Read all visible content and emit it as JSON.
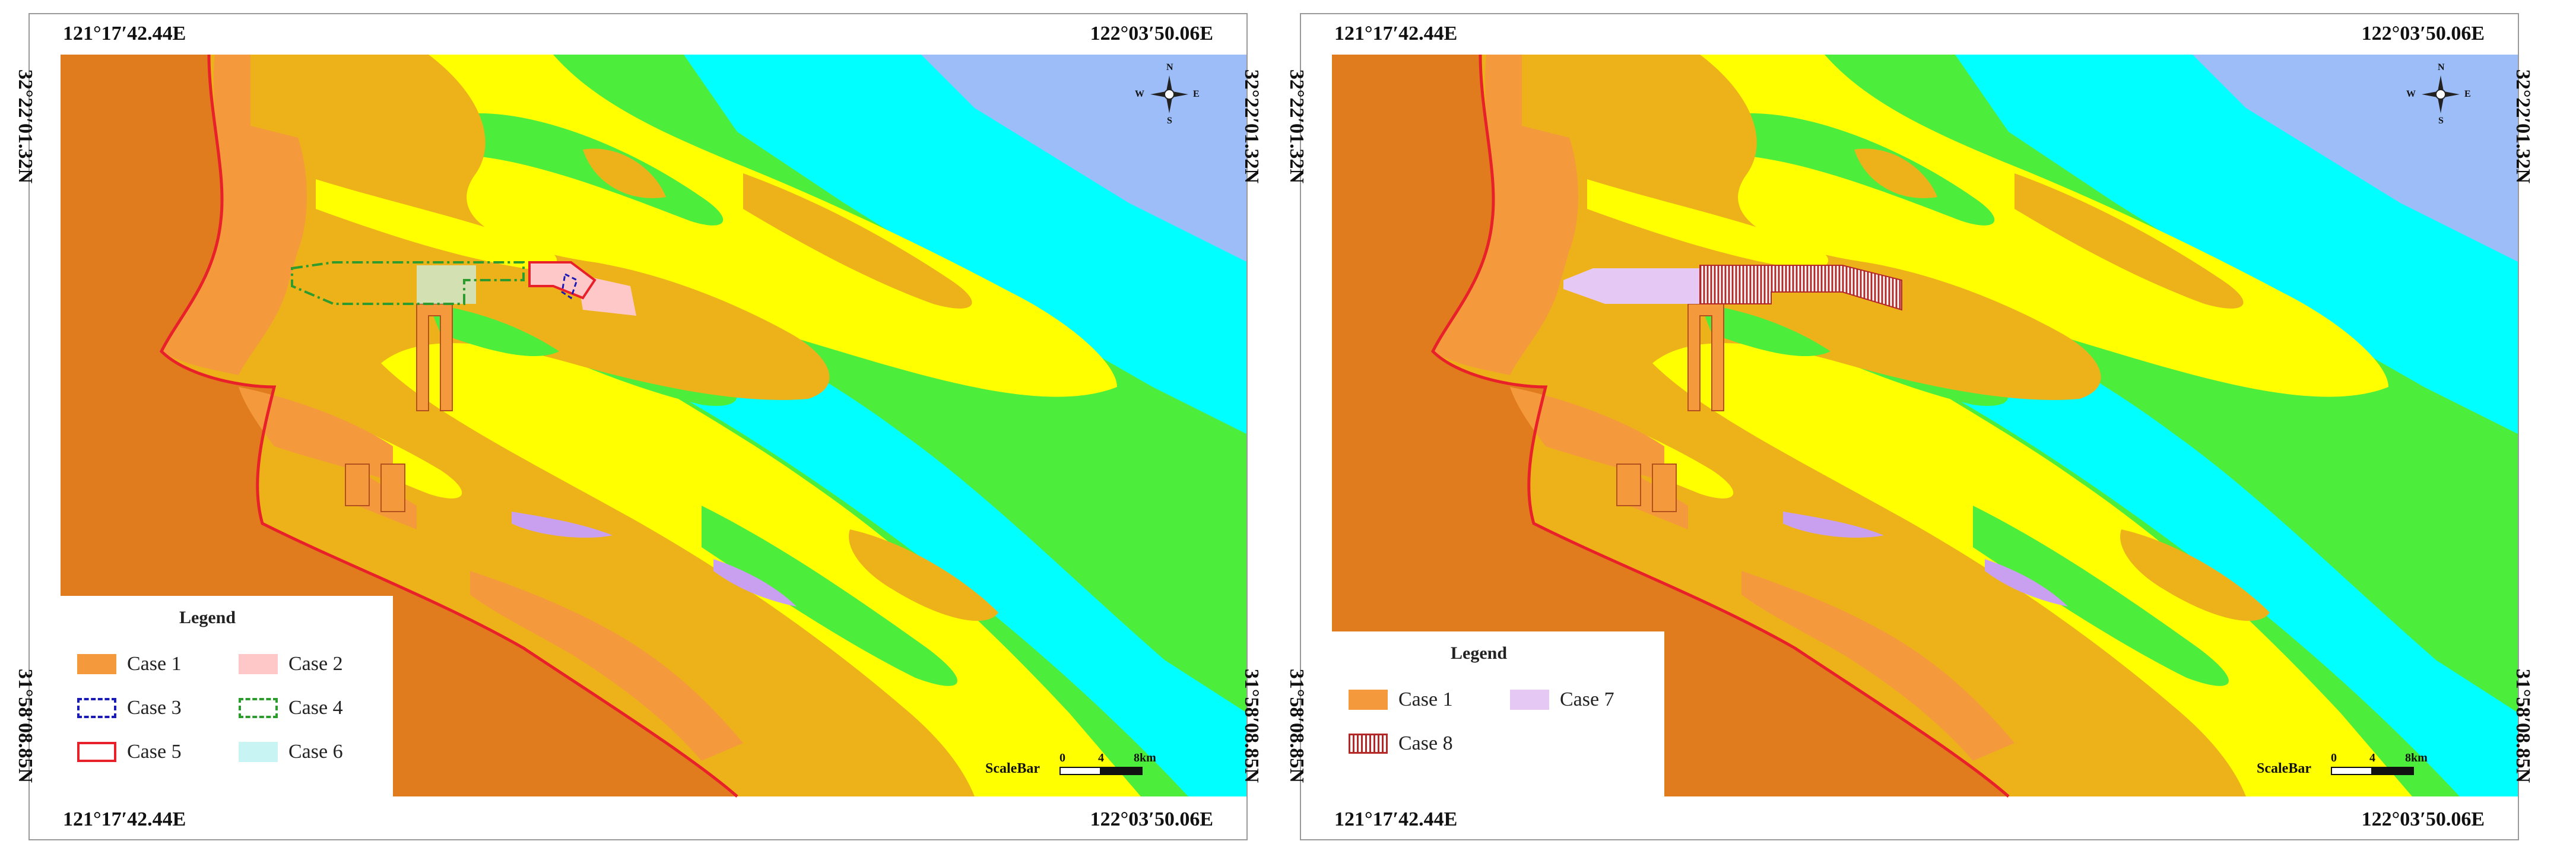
{
  "colors": {
    "mainland": "#E07B1E",
    "reclaimed": "#F49A3C",
    "high_flat": "#EDB21A",
    "mid_flat": "#FFFF00",
    "low_flat": "#4DED3C",
    "channel": "#00FFFF",
    "deep_sea": "#9DBDF8",
    "coast_line": "#E8202A",
    "case2": "#FFC8C8",
    "case3": "#1A1AB4",
    "case4": "#2D9B2D",
    "case5": "#E8202A",
    "case6": "#C8F4F4",
    "case7": "#E6C8F4",
    "case8": "#B42828"
  },
  "panels": [
    {
      "id": "left",
      "coords": {
        "top_left": "121°17′42.44E",
        "top_right": "122°03′50.06E",
        "bottom_left": "121°17′42.44E",
        "bottom_right": "122°03′50.06E",
        "left_top": "32°22′01.32N",
        "right_top": "32°22′01.32N",
        "left_bottom": "31°58′08.85N",
        "right_bottom": "31°58′08.85N"
      },
      "legend": {
        "title": "Legend",
        "items": [
          {
            "label": "Case 1",
            "swatch": "case1"
          },
          {
            "label": "Case 2",
            "swatch": "case2"
          },
          {
            "label": "Case 3",
            "swatch": "case3"
          },
          {
            "label": "Case 4",
            "swatch": "case4"
          },
          {
            "label": "Case 5",
            "swatch": "case5"
          },
          {
            "label": "Case 6",
            "swatch": "case6"
          }
        ]
      },
      "scalebar": {
        "title": "ScaleBar",
        "ticks": [
          "0",
          "4",
          "8km"
        ]
      },
      "compass": {
        "n": "N",
        "s": "S",
        "e": "E",
        "w": "W"
      }
    },
    {
      "id": "right",
      "coords": {
        "top_left": "121°17′42.44E",
        "top_right": "122°03′50.06E",
        "bottom_left": "121°17′42.44E",
        "bottom_right": "122°03′50.06E",
        "left_top": "32°22′01.32N",
        "right_top": "32°22′01.32N",
        "left_bottom": "31°58′08.85N",
        "right_bottom": "31°58′08.85N"
      },
      "legend": {
        "title": "Legend",
        "items": [
          {
            "label": "Case 1",
            "swatch": "case1"
          },
          {
            "label": "Case 7",
            "swatch": "case7"
          },
          {
            "label": "Case 8",
            "swatch": "case8"
          }
        ]
      },
      "scalebar": {
        "title": "ScaleBar",
        "ticks": [
          "0",
          "4",
          "8km"
        ]
      },
      "compass": {
        "n": "N",
        "s": "S",
        "e": "E",
        "w": "W"
      }
    }
  ]
}
